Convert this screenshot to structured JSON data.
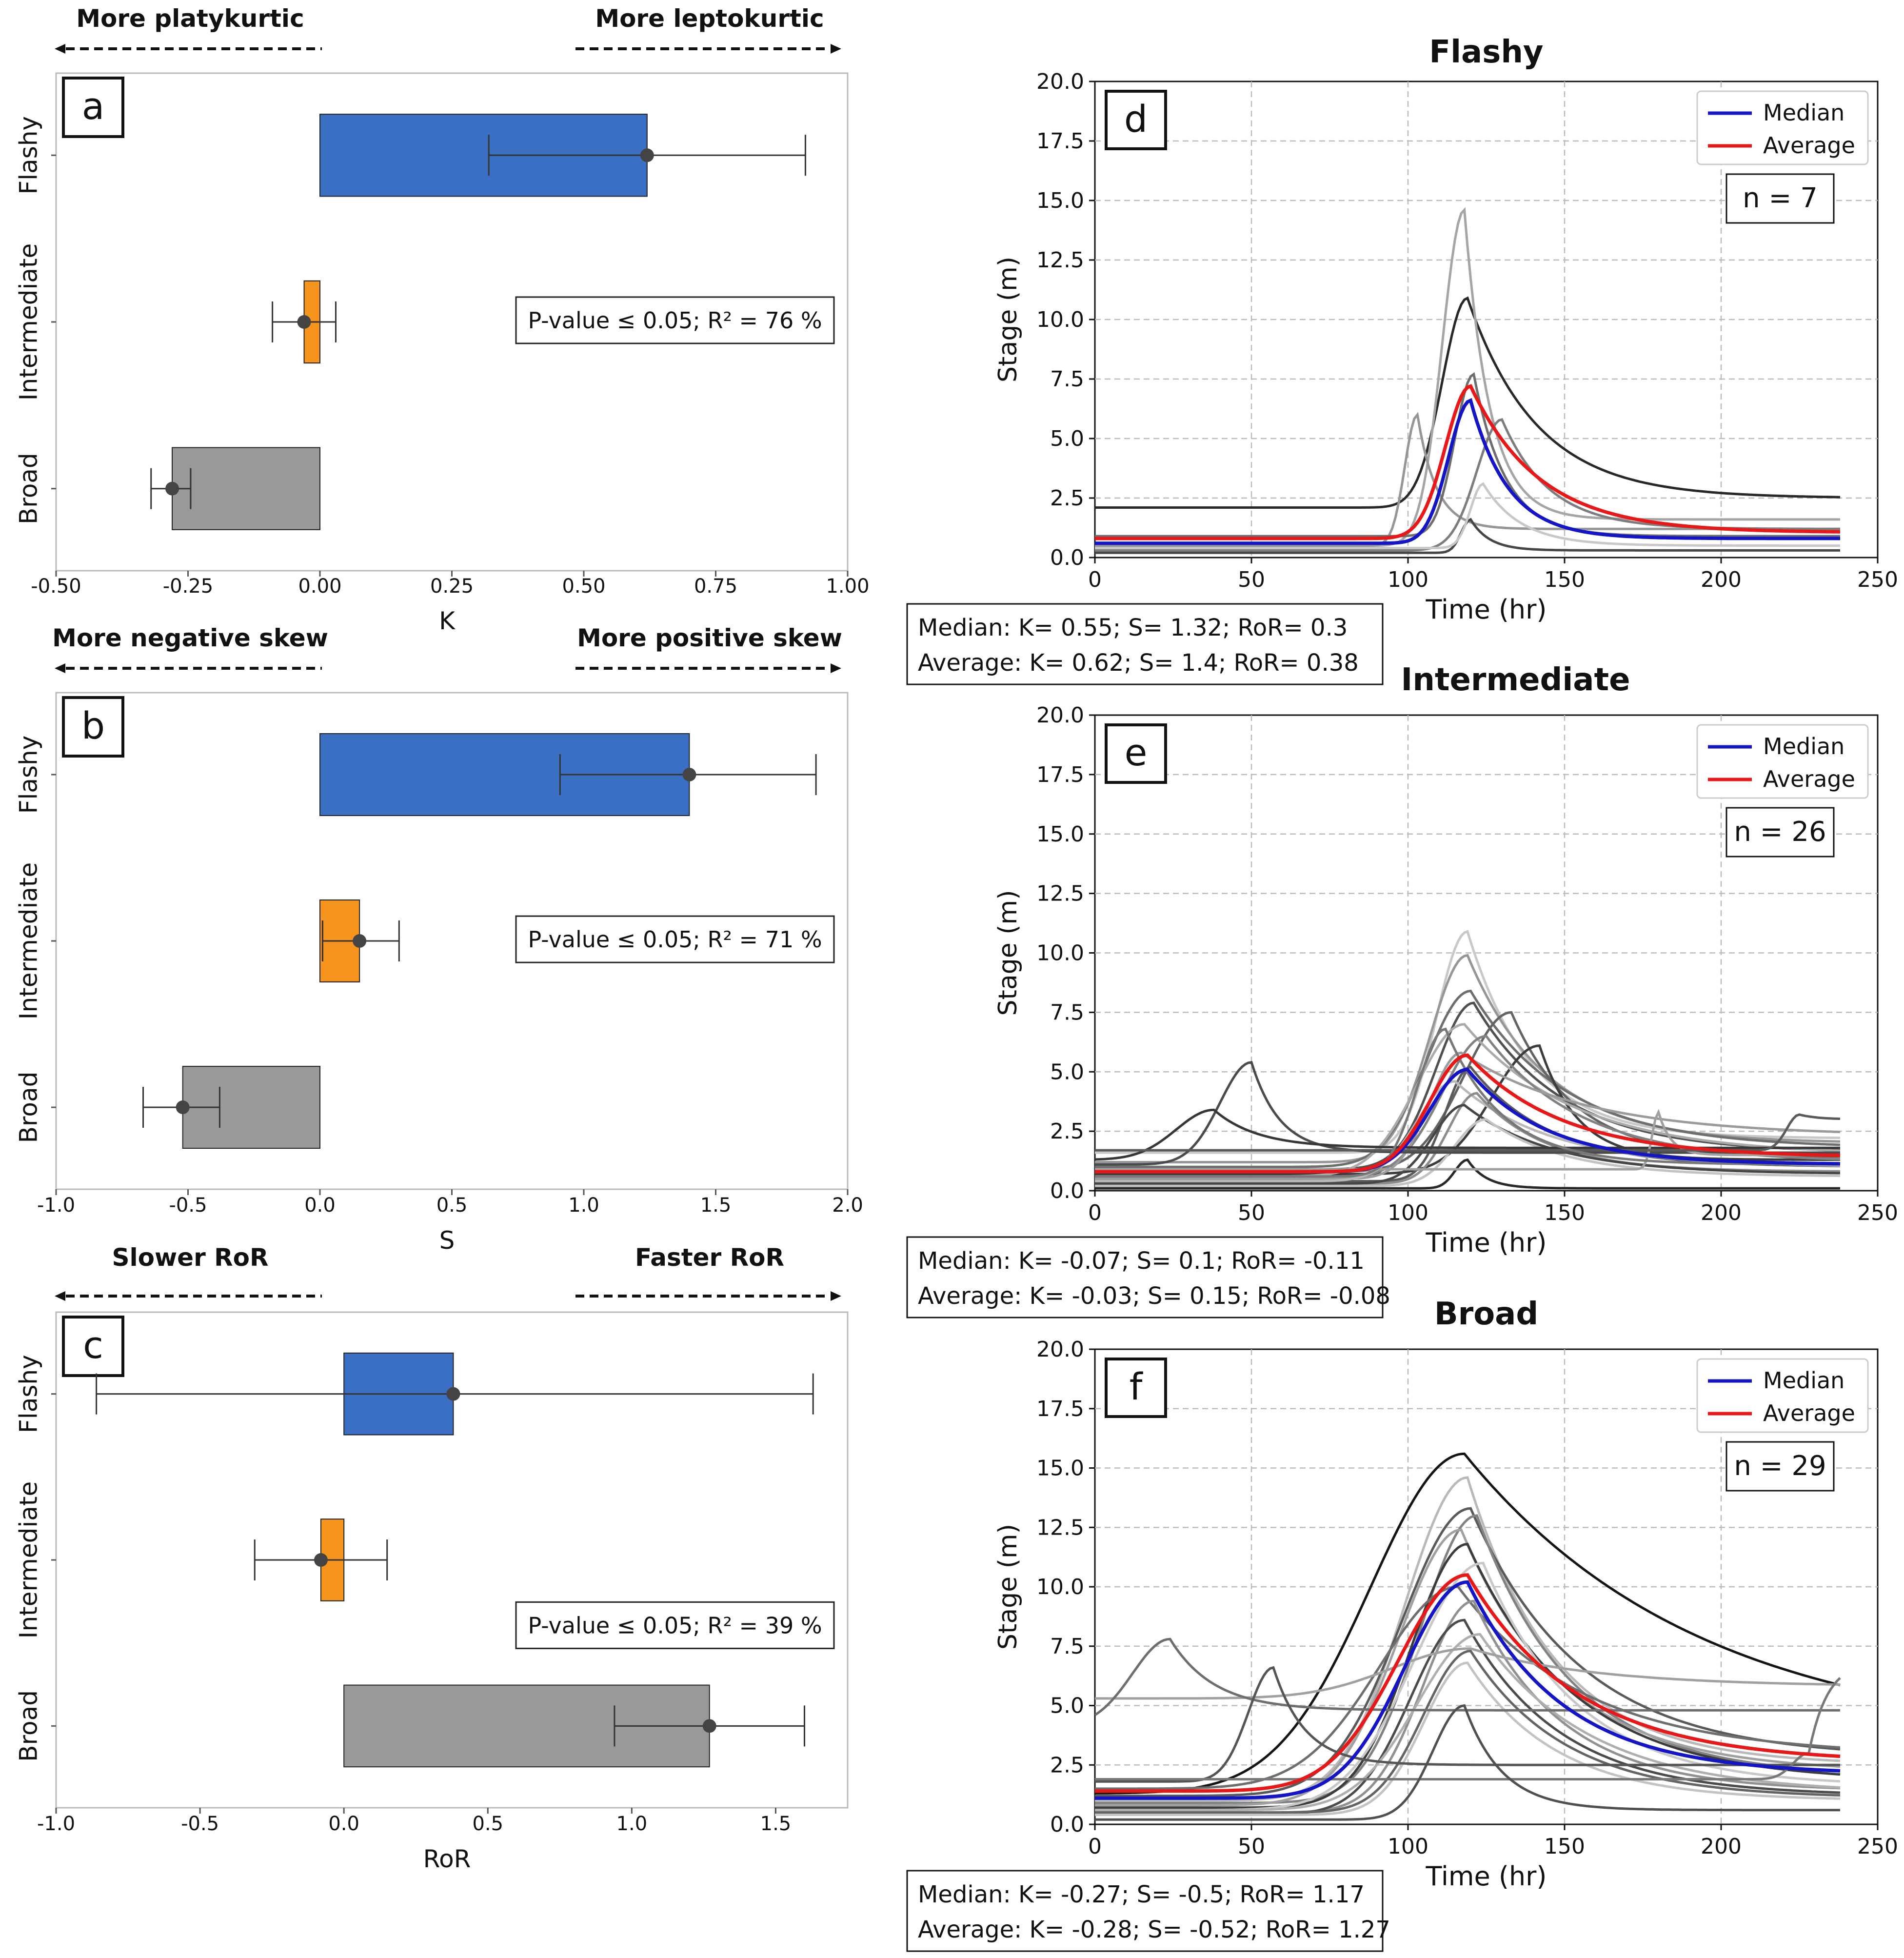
{
  "chart_data": [
    {
      "type": "bar",
      "panel": "a",
      "xlabel": "K",
      "xlim": [
        -0.5,
        1.0
      ],
      "xticks": [
        -0.5,
        -0.25,
        0.0,
        0.25,
        0.5,
        0.75,
        1.0
      ],
      "xtick_labels": [
        "-0.50",
        "-0.25",
        "0.00",
        "0.25",
        "0.50",
        "0.75",
        "1.00"
      ],
      "categories": [
        "Flashy",
        "Intermediate",
        "Broad"
      ],
      "values": [
        0.62,
        -0.03,
        -0.28
      ],
      "point": [
        0.62,
        -0.03,
        -0.28
      ],
      "err_low": [
        0.32,
        -0.09,
        -0.32
      ],
      "err_high": [
        0.92,
        0.03,
        -0.245
      ],
      "colors": [
        "#3a6fc4",
        "#f7941d",
        "#999999"
      ],
      "annotation": "P-value ≤ 0.05; R² = 76 %",
      "left_label": "More platykurtic",
      "right_label": "More leptokurtic"
    },
    {
      "type": "bar",
      "panel": "b",
      "xlabel": "S",
      "xlim": [
        -1.0,
        2.0
      ],
      "xticks": [
        -1.0,
        -0.5,
        0.0,
        0.5,
        1.0,
        1.5,
        2.0
      ],
      "xtick_labels": [
        "-1.0",
        "-0.5",
        "0.0",
        "0.5",
        "1.0",
        "1.5",
        "2.0"
      ],
      "categories": [
        "Flashy",
        "Intermediate",
        "Broad"
      ],
      "values": [
        1.4,
        0.15,
        -0.52
      ],
      "point": [
        1.4,
        0.15,
        -0.52
      ],
      "err_low": [
        0.91,
        0.01,
        -0.67
      ],
      "err_high": [
        1.88,
        0.3,
        -0.38
      ],
      "colors": [
        "#3a6fc4",
        "#f7941d",
        "#999999"
      ],
      "annotation": "P-value ≤ 0.05; R² = 71 %",
      "left_label": "More negative skew",
      "right_label": "More positive skew"
    },
    {
      "type": "bar",
      "panel": "c",
      "xlabel": "RoR",
      "xlim": [
        -1.0,
        1.75
      ],
      "xticks": [
        -1.0,
        -0.5,
        0.0,
        0.5,
        1.0,
        1.5
      ],
      "xtick_labels": [
        "-1.0",
        "-0.5",
        "0.0",
        "0.5",
        "1.0",
        "1.5"
      ],
      "categories": [
        "Flashy",
        "Intermediate",
        "Broad"
      ],
      "values": [
        0.38,
        -0.08,
        1.27
      ],
      "bar_start": [
        0.0,
        0.0,
        0.0
      ],
      "point": [
        0.38,
        -0.08,
        1.27
      ],
      "err_low": [
        -0.86,
        -0.31,
        0.94
      ],
      "err_high": [
        1.63,
        0.15,
        1.6
      ],
      "colors": [
        "#3a6fc4",
        "#f7941d",
        "#999999"
      ],
      "annotation": "P-value ≤ 0.05; R² = 39 %",
      "left_label": "Slower RoR",
      "right_label": "Faster RoR"
    },
    {
      "type": "line",
      "panel": "d",
      "title": "Flashy",
      "xlabel": "Time (hr)",
      "ylabel": "Stage (m)",
      "xlim": [
        0,
        250
      ],
      "ylim": [
        0,
        20
      ],
      "xticks": [
        0,
        50,
        100,
        150,
        200,
        250
      ],
      "yticks": [
        "0.0",
        "2.5",
        "5.0",
        "7.5",
        "10.0",
        "12.5",
        "15.0",
        "17.5",
        "20.0"
      ],
      "legend": [
        "Median",
        "Average"
      ],
      "n_label": "n = 7",
      "stats": [
        "Median: K= 0.55; S= 1.32; RoR= 0.3",
        "Average: K= 0.62; S= 1.4; RoR= 0.38"
      ],
      "median": {
        "name": "Median",
        "color": "#1515c8",
        "base": 0.6,
        "peak": 6.6,
        "t_peak": 120,
        "rise": 7,
        "fall": 12,
        "end": 0.8
      },
      "average": {
        "name": "Average",
        "color": "#e81818",
        "base": 0.8,
        "peak": 7.2,
        "t_peak": 120,
        "rise": 8,
        "fall": 22,
        "end": 1.05
      },
      "events": [
        {
          "base": 2.1,
          "peak": 10.9,
          "t_peak": 119,
          "rise": 8,
          "fall": 22,
          "end": 2.5,
          "shade": 40
        },
        {
          "base": 0.5,
          "peak": 14.6,
          "t_peak": 118,
          "rise": 7,
          "fall": 8,
          "end": 1.6,
          "shade": 165
        },
        {
          "base": 0.5,
          "peak": 6.0,
          "t_peak": 103,
          "rise": 4,
          "fall": 6,
          "end": 1.2,
          "shade": 150
        },
        {
          "base": 0.9,
          "peak": 7.7,
          "t_peak": 121,
          "rise": 6,
          "fall": 10,
          "end": 0.9,
          "shade": 110
        },
        {
          "base": 0.3,
          "peak": 5.8,
          "t_peak": 130,
          "rise": 8,
          "fall": 15,
          "end": 1.2,
          "shade": 125
        },
        {
          "base": 0.2,
          "peak": 1.6,
          "t_peak": 120,
          "rise": 3,
          "fall": 6,
          "end": 0.3,
          "shade": 70
        },
        {
          "base": 0.4,
          "peak": 3.1,
          "t_peak": 124,
          "rise": 4,
          "fall": 12,
          "end": 0.5,
          "shade": 200
        }
      ]
    },
    {
      "type": "line",
      "panel": "e",
      "title": "Intermediate",
      "xlabel": "Time (hr)",
      "ylabel": "Stage (m)",
      "xlim": [
        0,
        250
      ],
      "ylim": [
        0,
        20
      ],
      "xticks": [
        0,
        50,
        100,
        150,
        200,
        250
      ],
      "yticks": [
        "0.0",
        "2.5",
        "5.0",
        "7.5",
        "10.0",
        "12.5",
        "15.0",
        "17.5",
        "20.0"
      ],
      "legend": [
        "Median",
        "Average"
      ],
      "n_label": "n = 26",
      "stats": [
        "Median: K= -0.07; S= 0.1; RoR= -0.11",
        "Average: K= -0.03; S= 0.15; RoR= -0.08"
      ],
      "median": {
        "name": "Median",
        "color": "#1515c8",
        "base": 0.8,
        "peak": 5.1,
        "t_peak": 119,
        "rise": 12,
        "fall": 25,
        "end": 1.1
      },
      "average": {
        "name": "Average",
        "color": "#e81818",
        "base": 0.8,
        "peak": 5.7,
        "t_peak": 119,
        "rise": 12,
        "fall": 30,
        "end": 1.4
      },
      "events": [
        {
          "base": 1.6,
          "peak": 10.9,
          "t_peak": 119,
          "rise": 10,
          "fall": 20,
          "end": 2.2,
          "shade": 200
        },
        {
          "base": 1.2,
          "peak": 9.9,
          "t_peak": 119,
          "rise": 12,
          "fall": 25,
          "end": 2.0,
          "shade": 150
        },
        {
          "base": 1.0,
          "peak": 8.4,
          "t_peak": 120,
          "rise": 14,
          "fall": 30,
          "end": 1.8,
          "shade": 110
        },
        {
          "base": 0.9,
          "peak": 7.9,
          "t_peak": 121,
          "rise": 12,
          "fall": 28,
          "end": 1.6,
          "shade": 80
        },
        {
          "base": 0.8,
          "peak": 7.5,
          "t_peak": 133,
          "rise": 15,
          "fall": 20,
          "end": 1.4,
          "shade": 100
        },
        {
          "base": 0.7,
          "peak": 6.1,
          "t_peak": 142,
          "rise": 15,
          "fall": 12,
          "end": 1.3,
          "shade": 60
        },
        {
          "base": 0.6,
          "peak": 7.0,
          "t_peak": 118,
          "rise": 15,
          "fall": 35,
          "end": 1.5,
          "shade": 170
        },
        {
          "base": 0.5,
          "peak": 6.5,
          "t_peak": 125,
          "rise": 14,
          "fall": 30,
          "end": 1.2,
          "shade": 130
        },
        {
          "base": 0.5,
          "peak": 5.8,
          "t_peak": 117,
          "rise": 10,
          "fall": 40,
          "end": 2.3,
          "shade": 155
        },
        {
          "base": 0.4,
          "peak": 5.2,
          "t_peak": 120,
          "rise": 8,
          "fall": 25,
          "end": 1.0,
          "shade": 90
        },
        {
          "base": 0.4,
          "peak": 4.6,
          "t_peak": 115,
          "rise": 12,
          "fall": 30,
          "end": 1.0,
          "shade": 185
        },
        {
          "base": 0.3,
          "peak": 4.1,
          "t_peak": 122,
          "rise": 9,
          "fall": 22,
          "end": 0.8,
          "shade": 140
        },
        {
          "base": 0.3,
          "peak": 3.6,
          "t_peak": 118,
          "rise": 10,
          "fall": 28,
          "end": 0.7,
          "shade": 70
        },
        {
          "base": 0.2,
          "peak": 3.0,
          "t_peak": 125,
          "rise": 10,
          "fall": 25,
          "end": 0.6,
          "shade": 195
        },
        {
          "base": 0.1,
          "peak": 1.3,
          "t_peak": 119,
          "rise": 4,
          "fall": 6,
          "end": 0.1,
          "shade": 40
        },
        {
          "base": 1.1,
          "peak": 5.4,
          "t_peak": 50,
          "rise": 10,
          "fall": 9,
          "end": 1.6,
          "shade": 75
        },
        {
          "base": 1.3,
          "peak": 3.4,
          "t_peak": 38,
          "rise": 12,
          "fall": 14,
          "end": 1.8,
          "shade": 55
        },
        {
          "base": 0.9,
          "peak": 3.3,
          "t_peak": 180,
          "rise": 2,
          "fall": 4,
          "end": 1.5,
          "shade": 160
        },
        {
          "base": 1.7,
          "peak": 3.2,
          "t_peak": 225,
          "rise": 4,
          "fall": 6,
          "end": 3.0,
          "shade": 90
        },
        {
          "base": 0.6,
          "peak": 6.8,
          "t_peak": 112,
          "rise": 9,
          "fall": 18,
          "end": 1.1,
          "shade": 120
        }
      ]
    },
    {
      "type": "line",
      "panel": "f",
      "title": "Broad",
      "xlabel": "Time (hr)",
      "ylabel": "Stage (m)",
      "xlim": [
        0,
        250
      ],
      "ylim": [
        0,
        20
      ],
      "xticks": [
        0,
        50,
        100,
        150,
        200,
        250
      ],
      "yticks": [
        "0.0",
        "2.5",
        "5.0",
        "7.5",
        "10.0",
        "12.5",
        "15.0",
        "17.5",
        "20.0"
      ],
      "legend": [
        "Median",
        "Average"
      ],
      "n_label": "n = 29",
      "stats": [
        "Median: K= -0.27; S= -0.5; RoR= 1.17",
        "Average: K= -0.28; S= -0.52; RoR= 1.27"
      ],
      "median": {
        "name": "Median",
        "color": "#1515c8",
        "base": 1.1,
        "peak": 10.2,
        "t_peak": 119,
        "rise": 20,
        "fall": 30,
        "end": 2.1
      },
      "average": {
        "name": "Average",
        "color": "#e81818",
        "base": 1.4,
        "peak": 10.5,
        "t_peak": 119,
        "rise": 22,
        "fall": 35,
        "end": 2.6
      },
      "events": [
        {
          "base": 1.3,
          "peak": 15.6,
          "t_peak": 118,
          "rise": 30,
          "fall": 75,
          "end": 3.4,
          "shade": 20
        },
        {
          "base": 1.0,
          "peak": 14.6,
          "t_peak": 119,
          "rise": 20,
          "fall": 28,
          "end": 2.5,
          "shade": 185
        },
        {
          "base": 1.2,
          "peak": 13.3,
          "t_peak": 120,
          "rise": 22,
          "fall": 35,
          "end": 2.8,
          "shade": 90
        },
        {
          "base": 0.9,
          "peak": 13.0,
          "t_peak": 122,
          "rise": 18,
          "fall": 30,
          "end": 2.0,
          "shade": 130
        },
        {
          "base": 0.8,
          "peak": 12.4,
          "t_peak": 117,
          "rise": 20,
          "fall": 32,
          "end": 2.2,
          "shade": 160
        },
        {
          "base": 0.7,
          "peak": 11.8,
          "t_peak": 119,
          "rise": 18,
          "fall": 34,
          "end": 1.8,
          "shade": 60
        },
        {
          "base": 0.6,
          "peak": 11.0,
          "t_peak": 124,
          "rise": 22,
          "fall": 30,
          "end": 1.6,
          "shade": 200
        },
        {
          "base": 1.5,
          "peak": 10.0,
          "t_peak": 116,
          "rise": 25,
          "fall": 40,
          "end": 2.9,
          "shade": 110
        },
        {
          "base": 0.5,
          "peak": 9.4,
          "t_peak": 121,
          "rise": 16,
          "fall": 28,
          "end": 1.4,
          "shade": 145
        },
        {
          "base": 0.4,
          "peak": 8.6,
          "t_peak": 118,
          "rise": 17,
          "fall": 30,
          "end": 1.2,
          "shade": 75
        },
        {
          "base": 0.6,
          "peak": 8.0,
          "t_peak": 123,
          "rise": 20,
          "fall": 35,
          "end": 1.3,
          "shade": 175
        },
        {
          "base": 0.5,
          "peak": 7.3,
          "t_peak": 120,
          "rise": 15,
          "fall": 30,
          "end": 1.1,
          "shade": 100
        },
        {
          "base": 0.4,
          "peak": 6.8,
          "t_peak": 119,
          "rise": 14,
          "fall": 28,
          "end": 1.0,
          "shade": 195
        },
        {
          "base": 5.3,
          "peak": 7.4,
          "t_peak": 120,
          "rise": 25,
          "fall": 40,
          "end": 5.8,
          "shade": 160
        },
        {
          "base": 4.1,
          "peak": 7.8,
          "t_peak": 24,
          "rise": 12,
          "fall": 14,
          "end": 4.8,
          "shade": 110
        },
        {
          "base": 1.8,
          "peak": 6.6,
          "t_peak": 57,
          "rise": 8,
          "fall": 10,
          "end": 2.5,
          "shade": 85
        },
        {
          "base": 1.9,
          "peak": 3.0,
          "t_peak": 228,
          "rise": 5,
          "fall": 6,
          "end": 6.9,
          "shade": 120
        },
        {
          "base": 0.2,
          "peak": 5.0,
          "t_peak": 118,
          "rise": 10,
          "fall": 12,
          "end": 0.6,
          "shade": 80
        }
      ]
    }
  ]
}
